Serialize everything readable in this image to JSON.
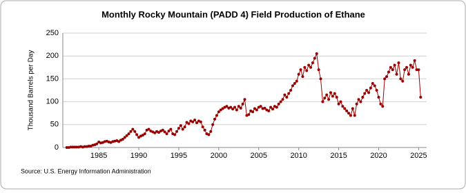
{
  "chart_data": {
    "type": "line",
    "title": "Monthly Rocky Mountain (PADD 4) Field Production of Ethane",
    "y_label": "Thousand Barrels per Day",
    "source": "Source: U.S. Energy Information Administration",
    "xlim": [
      1980.5,
      2026
    ],
    "xticks": [
      1985,
      1990,
      1995,
      2000,
      2005,
      2010,
      2015,
      2020,
      2025
    ],
    "ylim": [
      0,
      250
    ],
    "yticks": [
      0,
      50,
      100,
      150,
      200,
      250
    ],
    "grid": true,
    "x": [
      1981,
      1981.25,
      1981.5,
      1981.75,
      1982,
      1982.25,
      1982.5,
      1982.75,
      1983,
      1983.25,
      1983.5,
      1983.75,
      1984,
      1984.25,
      1984.5,
      1984.75,
      1985,
      1985.25,
      1985.5,
      1985.75,
      1986,
      1986.25,
      1986.5,
      1986.75,
      1987,
      1987.25,
      1987.5,
      1987.75,
      1988,
      1988.25,
      1988.5,
      1988.75,
      1989,
      1989.25,
      1989.5,
      1989.75,
      1990,
      1990.25,
      1990.5,
      1990.75,
      1991,
      1991.25,
      1991.5,
      1991.75,
      1992,
      1992.25,
      1992.5,
      1992.75,
      1993,
      1993.25,
      1993.5,
      1993.75,
      1994,
      1994.25,
      1994.5,
      1994.75,
      1995,
      1995.25,
      1995.5,
      1995.75,
      1996,
      1996.25,
      1996.5,
      1996.75,
      1997,
      1997.25,
      1997.5,
      1997.75,
      1998,
      1998.25,
      1998.5,
      1998.75,
      1999,
      1999.25,
      1999.5,
      1999.75,
      2000,
      2000.25,
      2000.5,
      2000.75,
      2001,
      2001.25,
      2001.5,
      2001.75,
      2002,
      2002.25,
      2002.5,
      2002.75,
      2003,
      2003.25,
      2003.5,
      2003.75,
      2004,
      2004.25,
      2004.5,
      2004.75,
      2005,
      2005.25,
      2005.5,
      2005.75,
      2006,
      2006.25,
      2006.5,
      2006.75,
      2007,
      2007.25,
      2007.5,
      2007.75,
      2008,
      2008.25,
      2008.5,
      2008.75,
      2009,
      2009.25,
      2009.5,
      2009.75,
      2010,
      2010.25,
      2010.5,
      2010.75,
      2011,
      2011.25,
      2011.5,
      2011.75,
      2012,
      2012.25,
      2012.5,
      2012.75,
      2013,
      2013.25,
      2013.5,
      2013.75,
      2014,
      2014.25,
      2014.5,
      2014.75,
      2015,
      2015.25,
      2015.5,
      2015.75,
      2016,
      2016.25,
      2016.5,
      2016.75,
      2017,
      2017.25,
      2017.5,
      2017.75,
      2018,
      2018.25,
      2018.5,
      2018.75,
      2019,
      2019.25,
      2019.5,
      2019.75,
      2020,
      2020.25,
      2020.5,
      2020.75,
      2021,
      2021.25,
      2021.5,
      2021.75,
      2022,
      2022.25,
      2022.5,
      2022.75,
      2023,
      2023.25,
      2023.5,
      2023.75,
      2024,
      2024.25,
      2024.5,
      2024.75,
      2025,
      2025.25
    ],
    "series": [
      {
        "color": "#990000",
        "values": [
          0,
          0,
          1,
          1,
          1,
          1,
          1,
          2,
          1,
          2,
          2,
          3,
          3,
          5,
          6,
          8,
          12,
          10,
          11,
          13,
          14,
          12,
          11,
          13,
          14,
          15,
          13,
          16,
          18,
          22,
          26,
          30,
          35,
          40,
          35,
          28,
          22,
          25,
          27,
          30,
          38,
          40,
          36,
          34,
          32,
          35,
          33,
          36,
          38,
          34,
          30,
          36,
          40,
          30,
          28,
          35,
          42,
          48,
          40,
          45,
          55,
          52,
          58,
          56,
          60,
          54,
          58,
          56,
          45,
          38,
          30,
          28,
          35,
          50,
          62,
          70,
          78,
          82,
          85,
          88,
          90,
          86,
          88,
          84,
          88,
          82,
          90,
          86,
          95,
          105,
          70,
          72,
          80,
          78,
          85,
          82,
          88,
          90,
          85,
          86,
          82,
          80,
          88,
          84,
          90,
          88,
          95,
          100,
          105,
          115,
          110,
          118,
          125,
          135,
          140,
          145,
          160,
          170,
          155,
          175,
          168,
          180,
          175,
          185,
          195,
          205,
          170,
          150,
          100,
          108,
          115,
          105,
          120,
          112,
          118,
          110,
          95,
          100,
          90,
          85,
          80,
          75,
          70,
          85,
          70,
          95,
          105,
          100,
          110,
          118,
          125,
          120,
          130,
          140,
          135,
          125,
          110,
          95,
          90,
          150,
          155,
          165,
          175,
          170,
          180,
          160,
          185,
          150,
          145,
          170,
          175,
          160,
          180,
          175,
          190,
          170,
          170,
          110
        ]
      }
    ]
  }
}
